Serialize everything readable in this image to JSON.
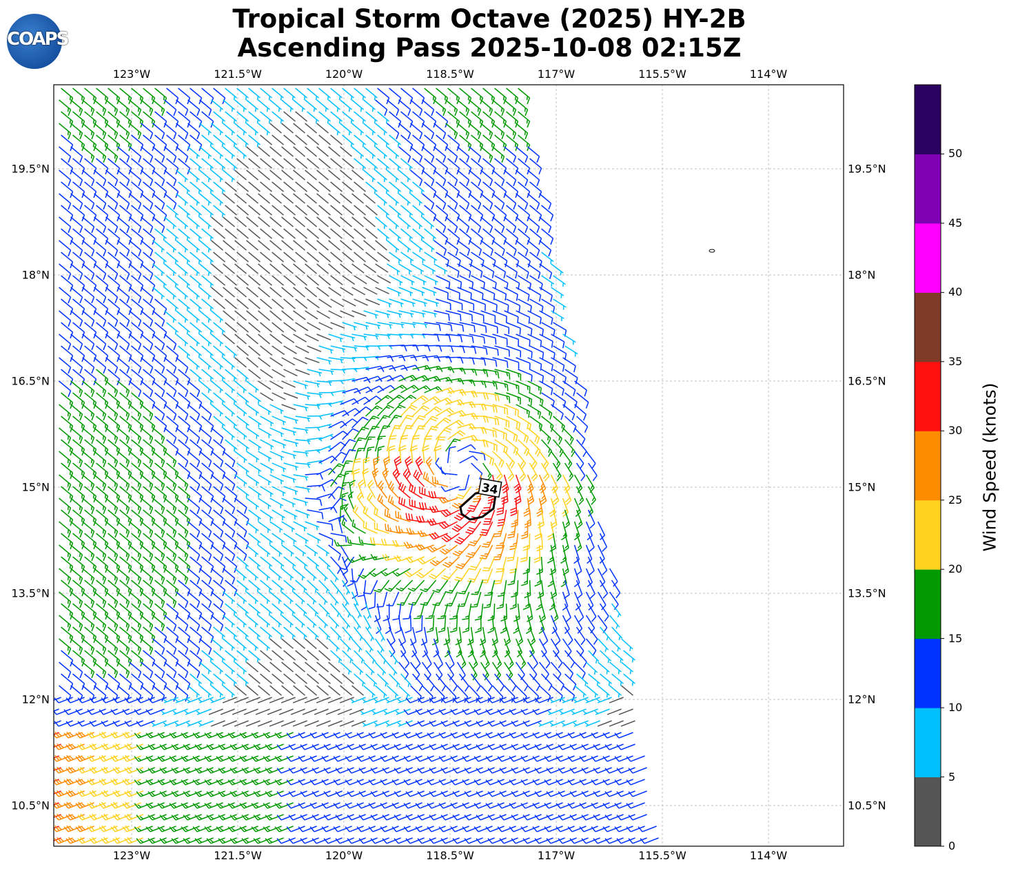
{
  "title_line1": "Tropical Storm Octave (2025) HY-2B",
  "title_line2": "Ascending Pass 2025-10-08 02:15Z",
  "logo_text": "COAPS",
  "lon_ticks": [
    "123°W",
    "121.5°W",
    "120°W",
    "118.5°W",
    "117°W",
    "115.5°W",
    "114°W"
  ],
  "lon_values": [
    -123,
    -121.5,
    -120,
    -118.5,
    -117,
    -115.5,
    -114
  ],
  "lat_ticks": [
    "19.5°N",
    "18°N",
    "16.5°N",
    "15°N",
    "13.5°N",
    "12°N",
    "10.5°N"
  ],
  "lat_values": [
    19.5,
    18,
    16.5,
    15,
    13.5,
    12,
    10.5
  ],
  "contour_label": "34",
  "colorbar": {
    "label": "Wind Speed (knots)",
    "ticks": [
      "0",
      "5",
      "10",
      "15",
      "20",
      "25",
      "30",
      "35",
      "40",
      "45",
      "50"
    ],
    "bins": [
      0,
      5,
      10,
      15,
      20,
      25,
      30,
      35,
      40,
      45,
      50,
      55
    ],
    "colors": [
      "#555555",
      "#00bfff",
      "#0033ff",
      "#009900",
      "#ffd21f",
      "#ff8c00",
      "#ff1010",
      "#7f3a28",
      "#ff00ff",
      "#8000b3",
      "#2a0060"
    ]
  }
}
